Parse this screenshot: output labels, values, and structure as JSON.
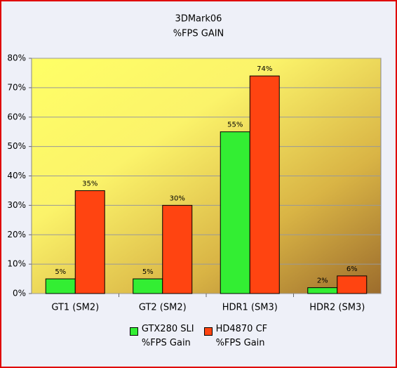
{
  "chart_data": {
    "type": "bar",
    "title": "3DMark06",
    "subtitle": "%FPS GAIN",
    "categories": [
      "GT1 (SM2)",
      "GT2 (SM2)",
      "HDR1 (SM3)",
      "HDR2 (SM3)"
    ],
    "series": [
      {
        "name": "GTX280 SLI\n%FPS Gain",
        "color": "#33ee33",
        "values": [
          5,
          5,
          55,
          2
        ],
        "value_labels": [
          "5%",
          "5%",
          "55%",
          "2%"
        ]
      },
      {
        "name": "HD4870 CF\n%FPS Gain",
        "color": "#ff4411",
        "values": [
          35,
          30,
          74,
          6
        ],
        "value_labels": [
          "35%",
          "30%",
          "74%",
          "6%"
        ]
      }
    ],
    "ylim": [
      0,
      80
    ],
    "yticks": [
      {
        "value": 0,
        "label": "0%"
      },
      {
        "value": 10,
        "label": "10%"
      },
      {
        "value": 20,
        "label": "20%"
      },
      {
        "value": 30,
        "label": "30%"
      },
      {
        "value": 40,
        "label": "40%"
      },
      {
        "value": 50,
        "label": "50%"
      },
      {
        "value": 60,
        "label": "60%"
      },
      {
        "value": 70,
        "label": "70%"
      },
      {
        "value": 80,
        "label": "80%"
      }
    ],
    "grid": true,
    "legend": "bottom"
  }
}
